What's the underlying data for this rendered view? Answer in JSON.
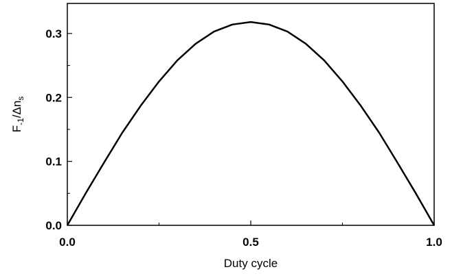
{
  "chart_data": {
    "type": "line",
    "xlabel": "Duty cycle",
    "ylabel": [
      "F",
      "-1",
      "/Δn",
      "s"
    ],
    "x": [
      0,
      0.05,
      0.1,
      0.15,
      0.2,
      0.25,
      0.3,
      0.35,
      0.4,
      0.45,
      0.5,
      0.55,
      0.6,
      0.65,
      0.7,
      0.75,
      0.8,
      0.85,
      0.9,
      0.95,
      1.0
    ],
    "series": [
      {
        "color": "#000000",
        "values": [
          0,
          0.05,
          0.098,
          0.145,
          0.187,
          0.225,
          0.258,
          0.284,
          0.303,
          0.314,
          0.318,
          0.314,
          0.303,
          0.284,
          0.258,
          0.225,
          0.187,
          0.145,
          0.098,
          0.05,
          0
        ]
      }
    ],
    "xlim": [
      0,
      1
    ],
    "ylim": [
      0,
      0.347
    ],
    "xticks": [
      {
        "value": 0,
        "label": "0.0"
      },
      0.5,
      {
        "value": 1,
        "label": "1.0"
      }
    ],
    "xminorticks": [
      0.25,
      0.75
    ],
    "yticks": [
      {
        "value": 0,
        "label": "0.0"
      },
      0.1,
      0.2,
      0.3
    ],
    "yminorticks": [
      0.05,
      0.15,
      0.25
    ],
    "grid": false
  }
}
